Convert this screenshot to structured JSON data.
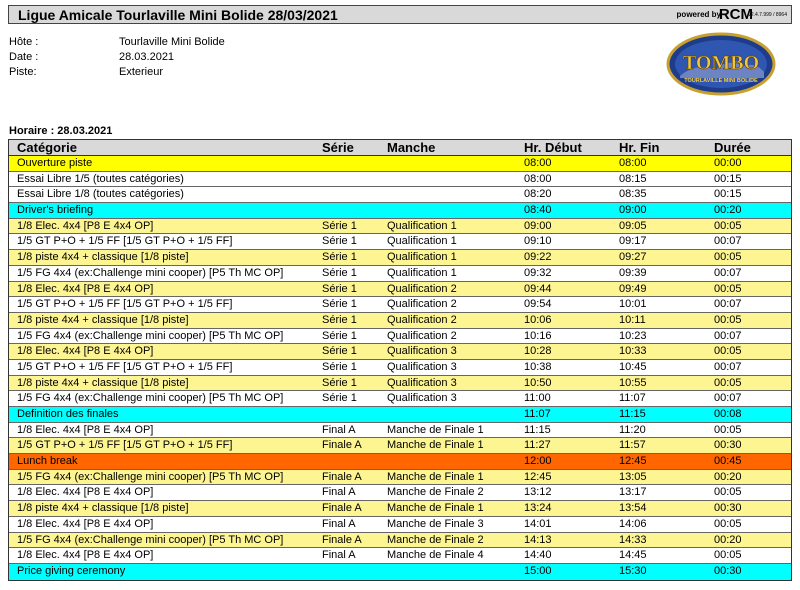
{
  "header": {
    "title": "Ligue Amicale Tourlaville Mini Bolide 28/03/2021",
    "powered_by": "powered by",
    "brand": "RCM",
    "version": "v2.4.7.999 / 8964"
  },
  "info": [
    {
      "label": "Hôte :",
      "value": "Tourlaville Mini Bolide"
    },
    {
      "label": "Date :",
      "value": "28.03.2021"
    },
    {
      "label": "Piste:",
      "value": "Exterieur"
    }
  ],
  "logo": {
    "text": "TOMBO",
    "subtext": "TOURLAVILLE MINI BOLIDE"
  },
  "horaire": "Horaire : 28.03.2021",
  "columns": [
    "Catégorie",
    "Série",
    "Manche",
    "Hr. Début",
    "Hr. Fin",
    "Durée"
  ],
  "rows": [
    {
      "style": "yellow",
      "cells": [
        "Ouverture piste",
        "",
        "",
        "08:00",
        "08:00",
        "00:00"
      ]
    },
    {
      "style": "white",
      "cells": [
        "Essai Libre 1/5 (toutes catégories)",
        "",
        "",
        "08:00",
        "08:15",
        "00:15"
      ]
    },
    {
      "style": "white",
      "cells": [
        "Essai Libre 1/8 (toutes catégories)",
        "",
        "",
        "08:20",
        "08:35",
        "00:15"
      ]
    },
    {
      "style": "cyan",
      "cells": [
        "Driver's briefing",
        "",
        "",
        "08:40",
        "09:00",
        "00:20"
      ]
    },
    {
      "style": "lyellow",
      "cells": [
        "1/8 Elec. 4x4 [P8 E 4x4 OP]",
        "Série 1",
        "Qualification 1",
        "09:00",
        "09:05",
        "00:05"
      ]
    },
    {
      "style": "white",
      "cells": [
        "1/5 GT P+O + 1/5 FF [1/5 GT P+O + 1/5 FF]",
        "Série 1",
        "Qualification 1",
        "09:10",
        "09:17",
        "00:07"
      ]
    },
    {
      "style": "lyellow",
      "cells": [
        "1/8 piste 4x4 + classique [1/8 piste]",
        "Série 1",
        "Qualification 1",
        "09:22",
        "09:27",
        "00:05"
      ]
    },
    {
      "style": "white",
      "cells": [
        "1/5 FG 4x4 (ex:Challenge mini cooper) [P5 Th MC OP]",
        "Série 1",
        "Qualification 1",
        "09:32",
        "09:39",
        "00:07"
      ]
    },
    {
      "style": "lyellow",
      "cells": [
        "1/8 Elec. 4x4 [P8 E 4x4 OP]",
        "Série 1",
        "Qualification 2",
        "09:44",
        "09:49",
        "00:05"
      ]
    },
    {
      "style": "white",
      "cells": [
        "1/5 GT P+O + 1/5 FF [1/5 GT P+O + 1/5 FF]",
        "Série 1",
        "Qualification 2",
        "09:54",
        "10:01",
        "00:07"
      ]
    },
    {
      "style": "lyellow",
      "cells": [
        "1/8 piste 4x4 + classique [1/8 piste]",
        "Série 1",
        "Qualification 2",
        "10:06",
        "10:11",
        "00:05"
      ]
    },
    {
      "style": "white",
      "cells": [
        "1/5 FG 4x4 (ex:Challenge mini cooper) [P5 Th MC OP]",
        "Série 1",
        "Qualification 2",
        "10:16",
        "10:23",
        "00:07"
      ]
    },
    {
      "style": "lyellow",
      "cells": [
        "1/8 Elec. 4x4 [P8 E 4x4 OP]",
        "Série 1",
        "Qualification 3",
        "10:28",
        "10:33",
        "00:05"
      ]
    },
    {
      "style": "white",
      "cells": [
        "1/5 GT P+O + 1/5 FF [1/5 GT P+O + 1/5 FF]",
        "Série 1",
        "Qualification 3",
        "10:38",
        "10:45",
        "00:07"
      ]
    },
    {
      "style": "lyellow",
      "cells": [
        "1/8 piste 4x4 + classique [1/8 piste]",
        "Série 1",
        "Qualification 3",
        "10:50",
        "10:55",
        "00:05"
      ]
    },
    {
      "style": "white",
      "cells": [
        "1/5 FG 4x4 (ex:Challenge mini cooper) [P5 Th MC OP]",
        "Série 1",
        "Qualification 3",
        "11:00",
        "11:07",
        "00:07"
      ]
    },
    {
      "style": "cyan",
      "cells": [
        "Definition des finales",
        "",
        "",
        "11:07",
        "11:15",
        "00:08"
      ]
    },
    {
      "style": "white",
      "cells": [
        "1/8 Elec. 4x4 [P8 E 4x4 OP]",
        "Final A",
        "Manche de Finale 1",
        "11:15",
        "11:20",
        "00:05"
      ]
    },
    {
      "style": "lyellow",
      "cells": [
        "1/5 GT P+O + 1/5 FF [1/5 GT P+O + 1/5 FF]",
        "Finale A",
        "Manche de Finale 1",
        "11:27",
        "11:57",
        "00:30"
      ]
    },
    {
      "style": "orange",
      "cells": [
        "Lunch break",
        "",
        "",
        "12:00",
        "12:45",
        "00:45"
      ]
    },
    {
      "style": "lyellow",
      "cells": [
        "1/5 FG 4x4 (ex:Challenge mini cooper) [P5 Th MC OP]",
        "Finale A",
        "Manche de Finale 1",
        "12:45",
        "13:05",
        "00:20"
      ]
    },
    {
      "style": "white",
      "cells": [
        "1/8 Elec. 4x4 [P8 E 4x4 OP]",
        "Final A",
        "Manche de Finale 2",
        "13:12",
        "13:17",
        "00:05"
      ]
    },
    {
      "style": "lyellow",
      "cells": [
        "1/8 piste 4x4 + classique [1/8 piste]",
        "Finale A",
        "Manche de Finale 1",
        "13:24",
        "13:54",
        "00:30"
      ]
    },
    {
      "style": "white",
      "cells": [
        "1/8 Elec. 4x4 [P8 E 4x4 OP]",
        "Final A",
        "Manche de Finale 3",
        "14:01",
        "14:06",
        "00:05"
      ]
    },
    {
      "style": "lyellow",
      "cells": [
        "1/5 FG 4x4 (ex:Challenge mini cooper) [P5 Th MC OP]",
        "Finale A",
        "Manche de Finale 2",
        "14:13",
        "14:33",
        "00:20"
      ]
    },
    {
      "style": "white",
      "cells": [
        "1/8 Elec. 4x4 [P8 E 4x4 OP]",
        "Final A",
        "Manche de Finale 4",
        "14:40",
        "14:45",
        "00:05"
      ]
    },
    {
      "style": "cyan",
      "cells": [
        "Price giving ceremony",
        "",
        "",
        "15:00",
        "15:30",
        "00:30"
      ]
    }
  ]
}
